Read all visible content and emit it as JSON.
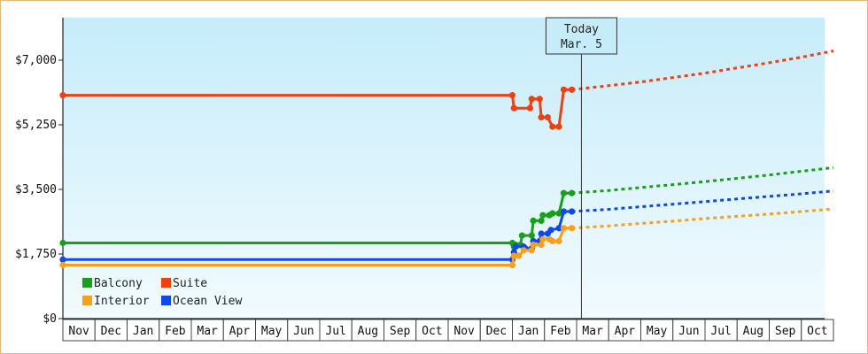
{
  "chart_data": {
    "type": "line",
    "title": "",
    "xlabel": "",
    "ylabel": "",
    "colors": {
      "Balcony": "#18a018",
      "Suite": "#f04010",
      "Interior": "#f8a018",
      "Ocean View": "#1048f0"
    },
    "x_ticks": [
      "Nov",
      "Dec",
      "Jan",
      "Feb",
      "Mar",
      "Apr",
      "May",
      "Jun",
      "Jul",
      "Aug",
      "Sep",
      "Oct",
      "Nov",
      "Dec",
      "Jan",
      "Feb",
      "Mar",
      "Apr",
      "May",
      "Jun",
      "Jul",
      "Aug",
      "Sep",
      "Oct"
    ],
    "y_ticks": [
      "$0",
      "$1,750",
      "$3,500",
      "$5,250",
      "$7,000"
    ],
    "y_tick_values": [
      0,
      1750,
      3500,
      5250,
      7000
    ],
    "ylim": [
      0,
      8150
    ],
    "today": {
      "line1": "Today",
      "line2": "Mar. 5",
      "x": 16.15
    },
    "legend": [
      "Balcony",
      "Suite",
      "Interior",
      "Ocean View"
    ],
    "series": [
      {
        "name": "Suite",
        "points": [
          [
            0,
            6050
          ],
          [
            14.0,
            6050
          ],
          [
            14.05,
            5700
          ],
          [
            14.55,
            5700
          ],
          [
            14.6,
            5950
          ],
          [
            14.85,
            5950
          ],
          [
            14.9,
            5450
          ],
          [
            15.1,
            5450
          ],
          [
            15.25,
            5200
          ],
          [
            15.45,
            5200
          ],
          [
            15.6,
            6200
          ],
          [
            15.85,
            6200
          ]
        ],
        "forecast": [
          [
            15.85,
            6200
          ],
          [
            17,
            6310
          ],
          [
            18,
            6410
          ],
          [
            19,
            6530
          ],
          [
            20,
            6650
          ],
          [
            21,
            6790
          ],
          [
            22,
            6930
          ],
          [
            23,
            7080
          ],
          [
            24,
            7250
          ]
        ]
      },
      {
        "name": "Balcony",
        "points": [
          [
            0,
            2050
          ],
          [
            14.0,
            2050
          ],
          [
            14.05,
            1950
          ],
          [
            14.1,
            2000
          ],
          [
            14.25,
            2000
          ],
          [
            14.3,
            2250
          ],
          [
            14.6,
            2250
          ],
          [
            14.65,
            2650
          ],
          [
            14.9,
            2650
          ],
          [
            14.95,
            2800
          ],
          [
            15.15,
            2800
          ],
          [
            15.25,
            2850
          ],
          [
            15.45,
            2850
          ],
          [
            15.6,
            3400
          ],
          [
            15.85,
            3400
          ]
        ],
        "forecast": [
          [
            15.85,
            3400
          ],
          [
            17,
            3470
          ],
          [
            18,
            3550
          ],
          [
            19,
            3630
          ],
          [
            20,
            3710
          ],
          [
            21,
            3800
          ],
          [
            22,
            3890
          ],
          [
            23,
            3990
          ],
          [
            24,
            4090
          ]
        ]
      },
      {
        "name": "Ocean View",
        "points": [
          [
            0,
            1600
          ],
          [
            14.0,
            1600
          ],
          [
            14.05,
            1800
          ],
          [
            14.1,
            1950
          ],
          [
            14.35,
            1950
          ],
          [
            14.4,
            1900
          ],
          [
            14.6,
            1900
          ],
          [
            14.65,
            2100
          ],
          [
            14.85,
            2100
          ],
          [
            14.9,
            2300
          ],
          [
            15.1,
            2300
          ],
          [
            15.2,
            2400
          ],
          [
            15.45,
            2450
          ],
          [
            15.6,
            2900
          ],
          [
            15.85,
            2900
          ]
        ],
        "forecast": [
          [
            15.85,
            2900
          ],
          [
            17,
            2960
          ],
          [
            18,
            3030
          ],
          [
            19,
            3100
          ],
          [
            20,
            3170
          ],
          [
            21,
            3240
          ],
          [
            22,
            3310
          ],
          [
            23,
            3380
          ],
          [
            24,
            3460
          ]
        ]
      },
      {
        "name": "Interior",
        "points": [
          [
            0,
            1450
          ],
          [
            14.0,
            1450
          ],
          [
            14.05,
            1700
          ],
          [
            14.2,
            1700
          ],
          [
            14.35,
            1850
          ],
          [
            14.6,
            1850
          ],
          [
            14.65,
            2000
          ],
          [
            14.9,
            2000
          ],
          [
            14.95,
            2150
          ],
          [
            15.15,
            2150
          ],
          [
            15.25,
            2100
          ],
          [
            15.45,
            2100
          ],
          [
            15.6,
            2450
          ],
          [
            15.85,
            2450
          ]
        ],
        "forecast": [
          [
            15.85,
            2450
          ],
          [
            17,
            2510
          ],
          [
            18,
            2580
          ],
          [
            19,
            2640
          ],
          [
            20,
            2710
          ],
          [
            21,
            2770
          ],
          [
            22,
            2830
          ],
          [
            23,
            2900
          ],
          [
            24,
            2970
          ]
        ]
      }
    ]
  }
}
